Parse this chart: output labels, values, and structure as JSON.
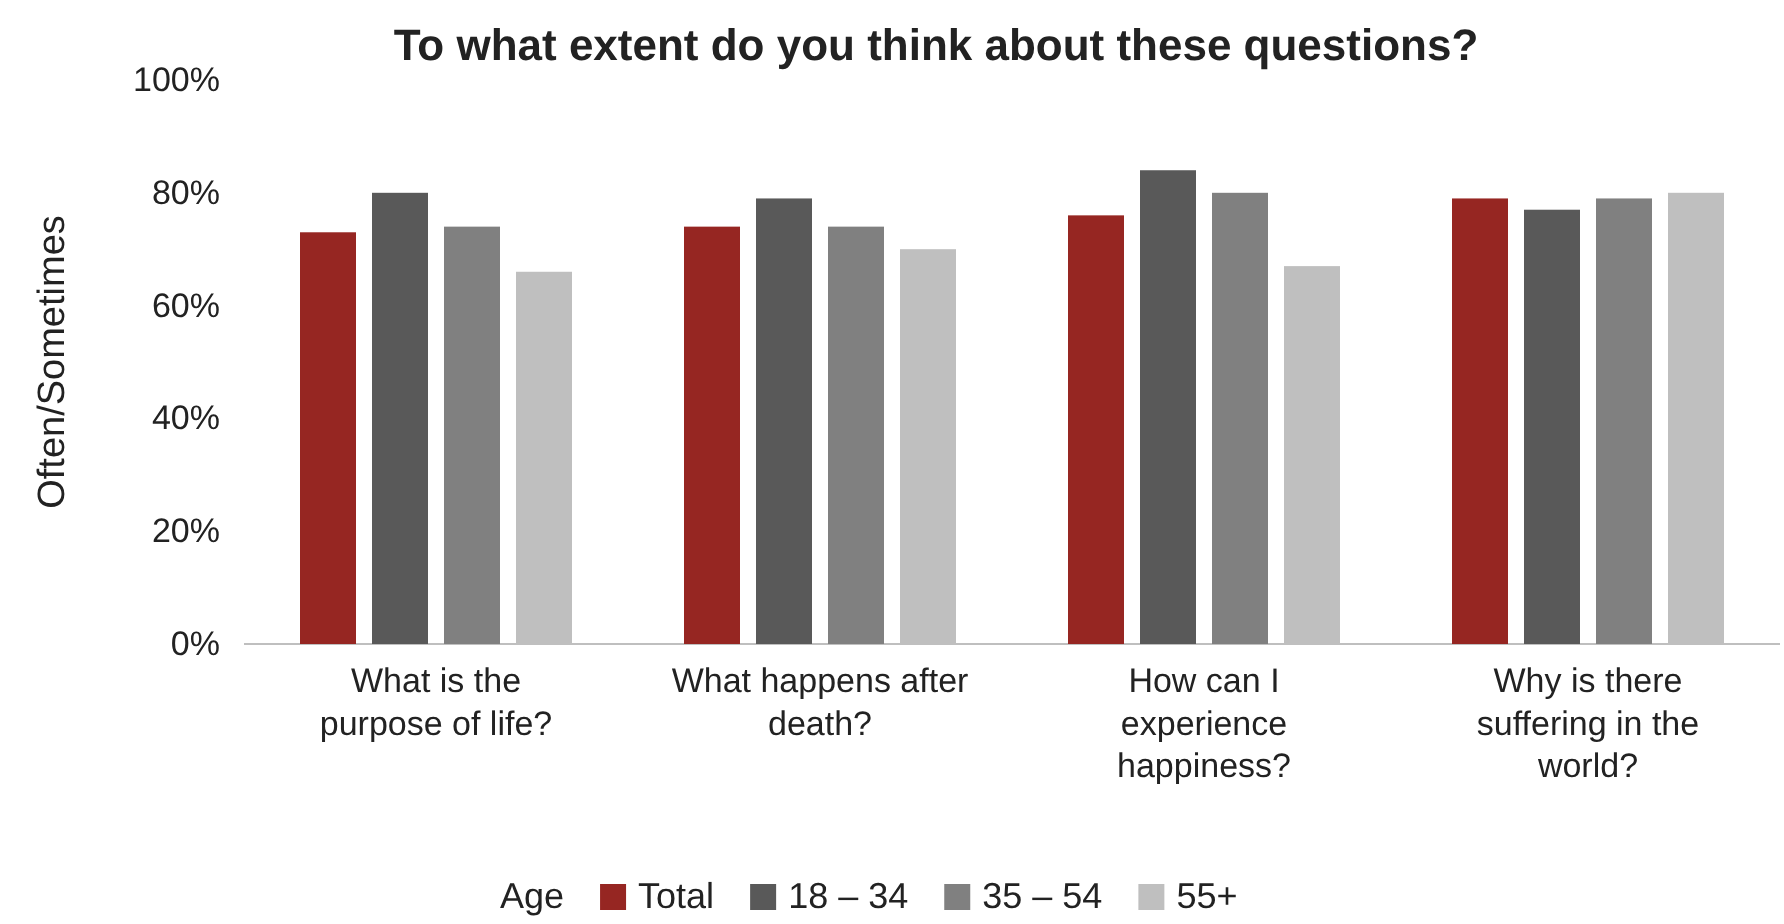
{
  "chart_data": {
    "type": "bar",
    "title": "To what extent do you think about these questions?",
    "ylabel": "Often/Sometimes",
    "legend_title": "Age",
    "categories": [
      "What is the purpose of life?",
      "What happens after death?",
      "How can I experience happiness?",
      "Why is there suffering in the world?"
    ],
    "series": [
      {
        "name": "Total",
        "color": "#962622",
        "values": [
          73,
          74,
          76,
          79
        ]
      },
      {
        "name": "18 – 34",
        "color": "#595959",
        "values": [
          80,
          79,
          84,
          77
        ]
      },
      {
        "name": "35 – 54",
        "color": "#808080",
        "values": [
          74,
          74,
          80,
          79
        ]
      },
      {
        "name": "55+",
        "color": "#bfbfbf",
        "values": [
          66,
          70,
          67,
          80
        ]
      }
    ],
    "ylim": [
      0,
      100
    ],
    "yticks": [
      {
        "value": 0,
        "label": "0%"
      },
      {
        "value": 20,
        "label": "20%"
      },
      {
        "value": 40,
        "label": "40%"
      },
      {
        "value": 60,
        "label": "60%"
      },
      {
        "value": 80,
        "label": "80%"
      },
      {
        "value": 100,
        "label": "100%"
      }
    ],
    "grid": false,
    "legend": "bottom"
  }
}
